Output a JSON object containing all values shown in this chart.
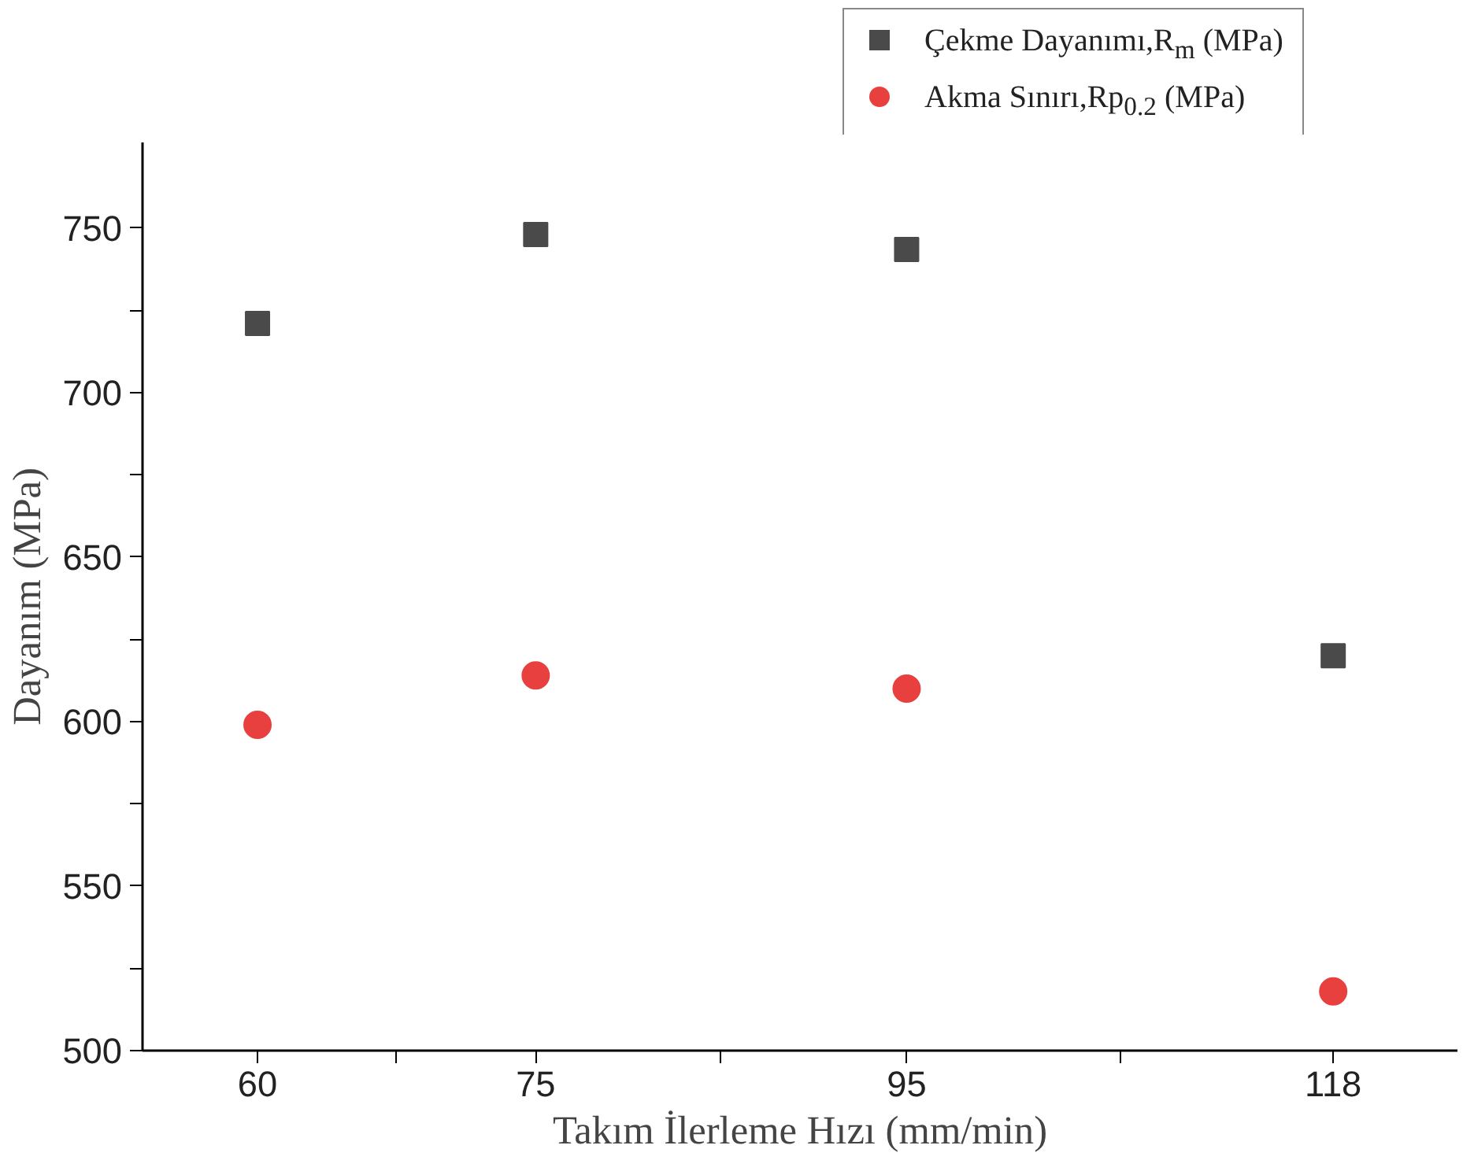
{
  "chart_data": {
    "type": "scatter",
    "xlabel": "Takım İlerleme Hızı (mm/min)",
    "ylabel": "Dayanım (MPa)",
    "x": [
      60,
      75,
      95,
      118
    ],
    "series": [
      {
        "name": "Çekme Dayanımı,R$_{m}$ (MPa)",
        "color": "#4a4a4a",
        "marker": "square",
        "values": [
          721,
          748,
          743.5,
          620
        ]
      },
      {
        "name": "Akma Sınırı,Rp$_{0.2}$ (MPa)",
        "color": "#e8403f",
        "marker": "circle",
        "values": [
          599,
          614,
          610,
          518
        ]
      }
    ],
    "xlim": [
      53.8,
      124.7
    ],
    "xticks": [
      60,
      {
        "value": 67.5,
        "label": null
      },
      75,
      {
        "value": 85,
        "label": null
      },
      95,
      {
        "value": 106.5,
        "label": null
      },
      118
    ],
    "ylim": [
      500,
      776
    ],
    "yticks": [
      500,
      {
        "value": 525,
        "label": null
      },
      550,
      {
        "value": 575,
        "label": null
      },
      600,
      {
        "value": 625,
        "label": null
      },
      650,
      {
        "value": 675,
        "label": null
      },
      700,
      {
        "value": 725,
        "label": null
      },
      750
    ],
    "grid": false,
    "legend": "top right"
  }
}
